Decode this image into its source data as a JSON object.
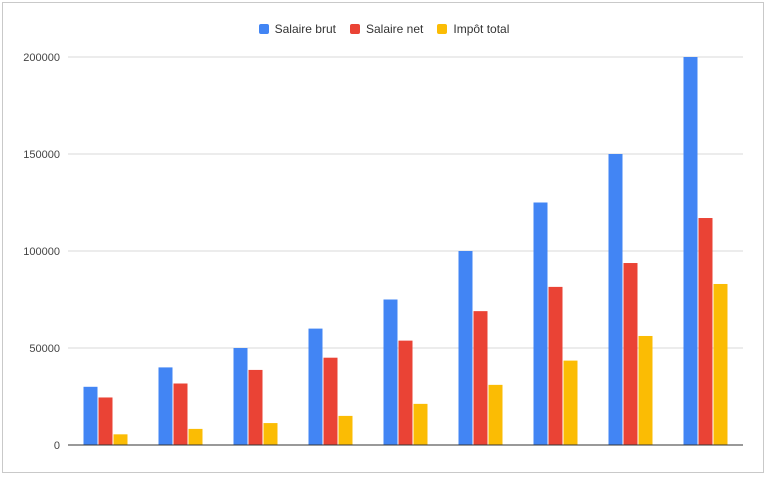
{
  "chart_data": {
    "type": "bar",
    "title": "",
    "xlabel": "",
    "ylabel": "",
    "categories": [
      "",
      "",
      "",
      "",
      "",
      "",
      "",
      "",
      ""
    ],
    "series": [
      {
        "name": "Salaire brut",
        "color": "#4285f4",
        "values": [
          30000,
          40000,
          50000,
          60000,
          75000,
          100000,
          125000,
          150000,
          200000
        ]
      },
      {
        "name": "Salaire net",
        "color": "#ea4335",
        "values": [
          24500,
          31700,
          38700,
          45000,
          53800,
          69000,
          81500,
          93800,
          117000
        ]
      },
      {
        "name": "Impôt total",
        "color": "#fbbc04",
        "values": [
          5500,
          8300,
          11300,
          15000,
          21200,
          31000,
          43500,
          56200,
          83000
        ]
      }
    ],
    "ylim": [
      0,
      200000
    ],
    "yticks": [
      0,
      50000,
      100000,
      150000,
      200000
    ],
    "grid": true,
    "legend_position": "top-center"
  }
}
